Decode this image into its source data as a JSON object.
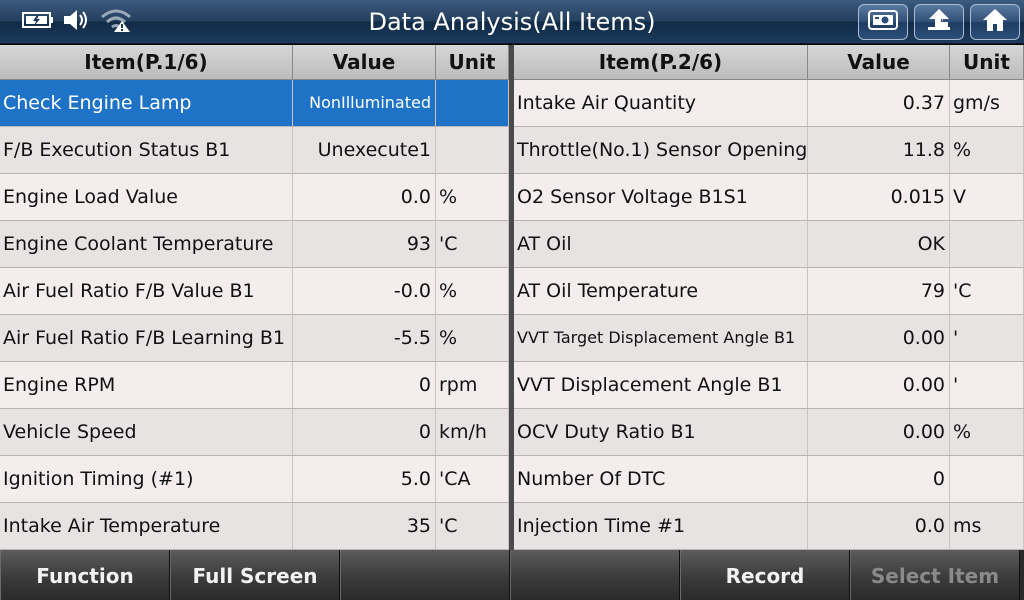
{
  "title": "Data Analysis(All Items)",
  "status_icons": [
    "battery-icon",
    "speaker-icon",
    "wifi-warning-icon"
  ],
  "top_buttons": [
    "screenshot-icon",
    "back-icon",
    "home-icon"
  ],
  "left_table": {
    "headers": {
      "item": "Item(P.1/6)",
      "value": "Value",
      "unit": "Unit"
    },
    "rows": [
      {
        "item": "Check Engine Lamp",
        "value": "NonIlluminated",
        "unit": ""
      },
      {
        "item": "F/B Execution Status B1",
        "value": "Unexecute1",
        "unit": ""
      },
      {
        "item": "Engine Load Value",
        "value": "0.0",
        "unit": "%"
      },
      {
        "item": "Engine Coolant Temperature",
        "value": "93",
        "unit": "'C"
      },
      {
        "item": "Air Fuel Ratio F/B Value B1",
        "value": "-0.0",
        "unit": "%"
      },
      {
        "item": "Air Fuel Ratio F/B Learning B1",
        "value": "-5.5",
        "unit": "%"
      },
      {
        "item": "Engine RPM",
        "value": "0",
        "unit": "rpm"
      },
      {
        "item": "Vehicle Speed",
        "value": "0",
        "unit": "km/h"
      },
      {
        "item": "Ignition Timing (#1)",
        "value": "5.0",
        "unit": "'CA"
      },
      {
        "item": "Intake Air Temperature",
        "value": "35",
        "unit": "'C"
      }
    ]
  },
  "right_table": {
    "headers": {
      "item": "Item(P.2/6)",
      "value": "Value",
      "unit": "Unit"
    },
    "rows": [
      {
        "item": "Intake Air Quantity",
        "value": "0.37",
        "unit": "gm/s"
      },
      {
        "item": "Throttle(No.1) Sensor Opening",
        "value": "11.8",
        "unit": "%"
      },
      {
        "item": "O2 Sensor Voltage B1S1",
        "value": "0.015",
        "unit": "V"
      },
      {
        "item": "AT Oil",
        "value": "OK",
        "unit": ""
      },
      {
        "item": "AT Oil Temperature",
        "value": "79",
        "unit": "'C"
      },
      {
        "item": "VVT Target Displacement Angle B1",
        "value": "0.00",
        "unit": "'"
      },
      {
        "item": "VVT Displacement Angle B1",
        "value": "0.00",
        "unit": "'"
      },
      {
        "item": "OCV Duty Ratio B1",
        "value": "0.00",
        "unit": "%"
      },
      {
        "item": "Number Of DTC",
        "value": "0",
        "unit": ""
      },
      {
        "item": "Injection Time #1",
        "value": "0.0",
        "unit": "ms"
      }
    ]
  },
  "bottom_buttons": [
    {
      "label": "Function",
      "enabled": true
    },
    {
      "label": "Full Screen",
      "enabled": true
    },
    {
      "label": "",
      "enabled": true
    },
    {
      "label": "",
      "enabled": true
    },
    {
      "label": "Record",
      "enabled": true
    },
    {
      "label": "Select Item",
      "enabled": false
    }
  ],
  "colors": {
    "selected_row": "#1e73c6",
    "title_bar": "#1c3a5c"
  }
}
